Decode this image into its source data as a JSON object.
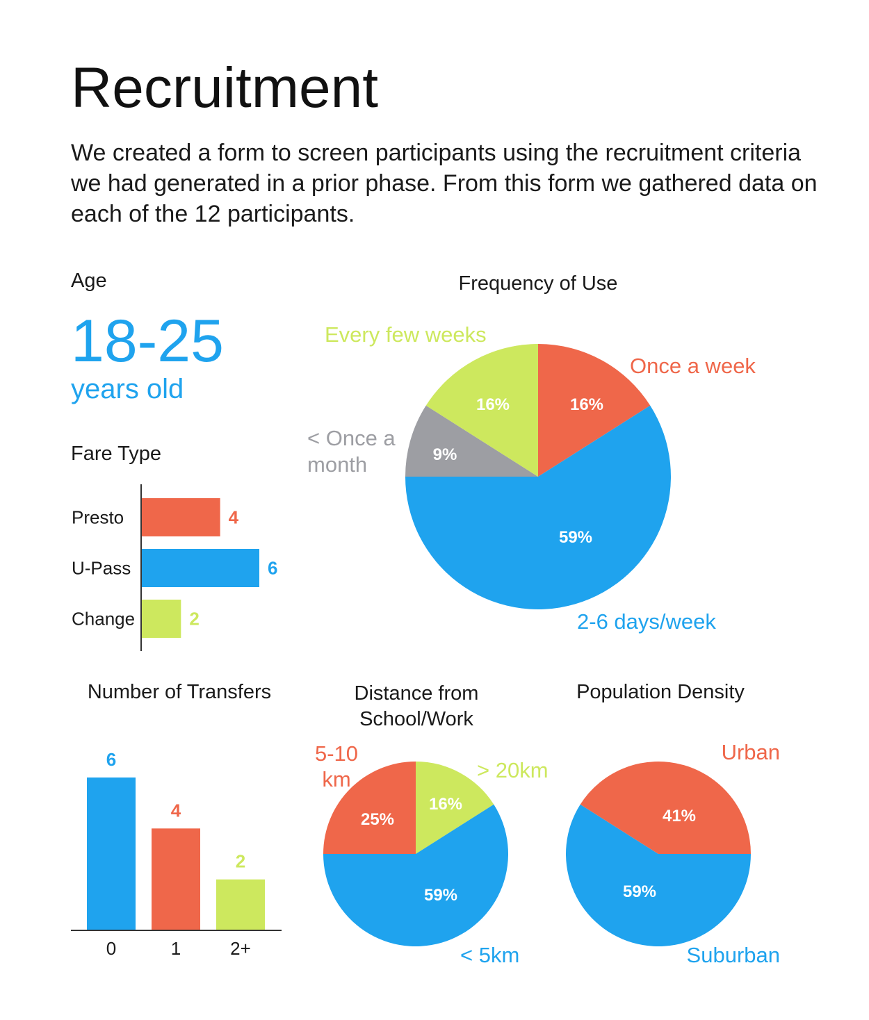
{
  "title": "Recruitment",
  "intro": "We created a form to screen participants using the recruitment criteria we had generated in a prior phase. From this form we gathered data on each of the 12 participants.",
  "colors": {
    "blue": "#1fa3ee",
    "orange": "#ef674a",
    "green": "#cde85e",
    "gray": "#9d9ea3",
    "axis": "#333333"
  },
  "age": {
    "heading": "Age",
    "value": "18-25",
    "unit": "years old"
  },
  "chart_data": [
    {
      "id": "fare",
      "type": "bar",
      "orientation": "horizontal",
      "title": "Fare Type",
      "categories": [
        "Presto",
        "U-Pass",
        "Change"
      ],
      "values": [
        4,
        6,
        2
      ],
      "colors": [
        "#ef674a",
        "#1fa3ee",
        "#cde85e"
      ],
      "xlim": [
        0,
        6
      ]
    },
    {
      "id": "frequency",
      "type": "pie",
      "title": "Frequency of Use",
      "slices": [
        {
          "label": "Once a week",
          "value": 16,
          "display": "16%",
          "color": "#ef674a"
        },
        {
          "label": "2-6 days/week",
          "value": 59,
          "display": "59%",
          "color": "#1fa3ee"
        },
        {
          "label": "< Once a month",
          "value": 9,
          "display": "9%",
          "color": "#9d9ea3"
        },
        {
          "label": "Every few weeks",
          "value": 16,
          "display": "16%",
          "color": "#cde85e"
        }
      ]
    },
    {
      "id": "transfers",
      "type": "bar",
      "orientation": "vertical",
      "title": "Number of Transfers",
      "categories": [
        "0",
        "1",
        "2+"
      ],
      "values": [
        6,
        4,
        2
      ],
      "colors": [
        "#1fa3ee",
        "#ef674a",
        "#cde85e"
      ],
      "ylim": [
        0,
        6
      ]
    },
    {
      "id": "distance",
      "type": "pie",
      "title": "Distance from School/Work",
      "slices": [
        {
          "label": "> 20km",
          "value": 16,
          "display": "16%",
          "color": "#cde85e"
        },
        {
          "label": "< 5km",
          "value": 59,
          "display": "59%",
          "color": "#1fa3ee"
        },
        {
          "label": "5-10 km",
          "value": 25,
          "display": "25%",
          "color": "#ef674a"
        }
      ]
    },
    {
      "id": "density",
      "type": "pie",
      "title": "Population Density",
      "slices": [
        {
          "label": "Suburban",
          "value": 59,
          "display": "59%",
          "color": "#1fa3ee"
        },
        {
          "label": "Urban",
          "value": 41,
          "display": "41%",
          "color": "#ef674a"
        }
      ]
    }
  ]
}
